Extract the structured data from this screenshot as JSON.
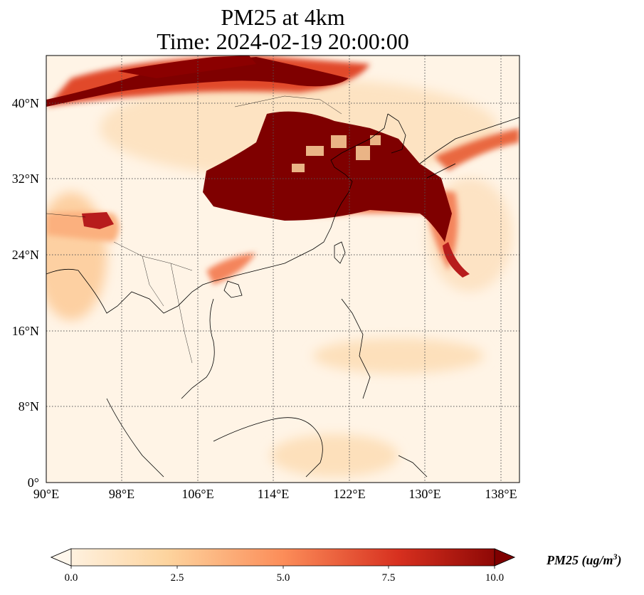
{
  "title": {
    "line1": "PM25 at 4km",
    "line2": "Time: 2024-02-19 20:00:00"
  },
  "map": {
    "x_ticks": [
      "90°E",
      "98°E",
      "106°E",
      "114°E",
      "122°E",
      "130°E",
      "138°E"
    ],
    "y_ticks": [
      "40°N",
      "32°N",
      "24°N",
      "16°N",
      "8°N",
      "0°"
    ],
    "extent": {
      "lon": [
        90,
        140
      ],
      "lat": [
        0,
        45
      ]
    },
    "gridlines": true
  },
  "colorbar": {
    "ticks": [
      "0.0",
      "2.5",
      "5.0",
      "7.5",
      "10.0"
    ],
    "label_main": "PM25 (ug/m",
    "label_sup": "3",
    "label_end": ")",
    "range": [
      0,
      10
    ],
    "cmap": "OrRd",
    "colors": [
      "#fff7ec",
      "#fdd49e",
      "#fc8d59",
      "#d7301f",
      "#7f0000"
    ]
  }
}
